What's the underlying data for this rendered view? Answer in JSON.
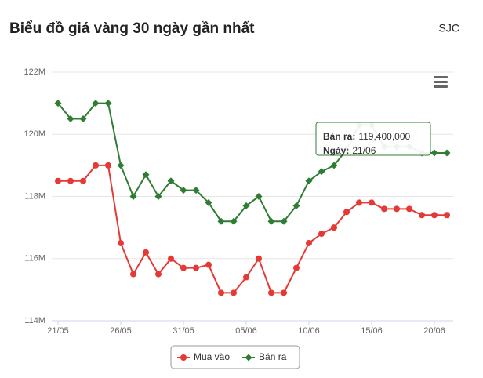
{
  "chart_data": {
    "type": "line",
    "title": "Biểu đồ giá vàng 30 ngày gần nhất",
    "subtitle": "SJC",
    "categories": [
      "21/05",
      null,
      null,
      null,
      null,
      "26/05",
      null,
      null,
      null,
      null,
      "31/05",
      null,
      null,
      null,
      null,
      "05/06",
      null,
      null,
      null,
      null,
      "10/06",
      null,
      null,
      null,
      null,
      "15/06",
      null,
      null,
      null,
      null,
      "20/06",
      null
    ],
    "series": [
      {
        "name": "Mua vào",
        "color": "#e53935",
        "values": [
          118500000,
          118500000,
          118500000,
          119000000,
          119000000,
          116500000,
          115500000,
          116200000,
          115500000,
          116000000,
          115700000,
          115700000,
          115800000,
          114900000,
          114900000,
          115400000,
          116000000,
          114900000,
          114900000,
          115700000,
          116500000,
          116800000,
          117000000,
          117500000,
          117800000,
          117800000,
          117600000,
          117600000,
          117600000,
          117400000,
          117400000,
          117400000
        ]
      },
      {
        "name": "Bán ra",
        "color": "#2e7d32",
        "values": [
          121000000,
          120500000,
          120500000,
          121000000,
          121000000,
          119000000,
          118000000,
          118700000,
          118000000,
          118500000,
          118200000,
          118200000,
          117800000,
          117200000,
          117200000,
          117700000,
          118000000,
          117200000,
          117200000,
          117700000,
          118500000,
          118800000,
          119000000,
          119500000,
          120300000,
          120300000,
          119600000,
          119600000,
          119600000,
          119400000,
          119400000,
          119400000
        ]
      }
    ],
    "ylim": [
      114000000,
      122000000
    ],
    "yticks": [
      {
        "value": 114000000,
        "label": "114M"
      },
      {
        "value": 116000000,
        "label": "116M"
      },
      {
        "value": 118000000,
        "label": "118M"
      },
      {
        "value": 120000000,
        "label": "120M"
      },
      {
        "value": 122000000,
        "label": "122M"
      }
    ],
    "grid": true,
    "legend": "bottom",
    "tooltip": {
      "rows": [
        {
          "label": "Bán ra:",
          "value": "119,400,000"
        },
        {
          "label": "Ngày:",
          "value": "21/06"
        }
      ]
    }
  }
}
